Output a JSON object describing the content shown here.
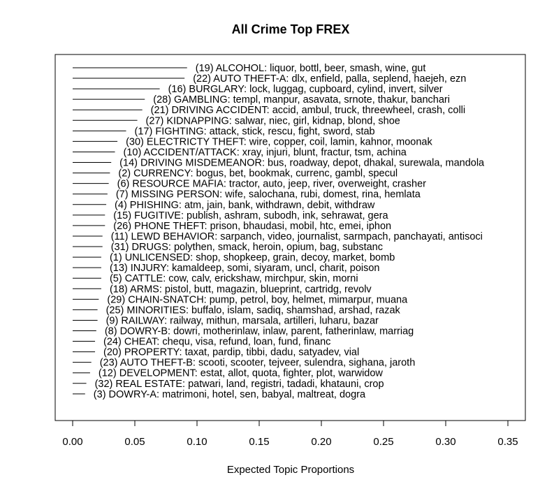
{
  "chart_data": {
    "type": "bar",
    "title": "All Crime Top FREX",
    "xlabel": "Expected Topic Proportions",
    "ylabel": "",
    "xlim": [
      0,
      0.35
    ],
    "x_ticks": [
      0.0,
      0.05,
      0.1,
      0.15,
      0.2,
      0.25,
      0.3,
      0.35
    ],
    "x_tick_labels": [
      "0.00",
      "0.05",
      "0.10",
      "0.15",
      "0.20",
      "0.25",
      "0.30",
      "0.35"
    ],
    "orientation": "horizontal",
    "grid": false,
    "bars": [
      {
        "label": "(19) ALCOHOL: liquor, bottl, beer, smash, wine, gut",
        "value": 0.092
      },
      {
        "label": "(22) AUTO THEFT-A: dlx, enfield, palla, seplend, haejeh, ezn",
        "value": 0.09
      },
      {
        "label": "(16) BURGLARY: lock, luggag, cupboard, cylind, invert, silver",
        "value": 0.07
      },
      {
        "label": "(28) GAMBLING: templ, manpur, asavata, srnote, thakur, banchari",
        "value": 0.058
      },
      {
        "label": "(21) DRIVING ACCIDENT: accid, ambul, truck, threewheel, crash, colli",
        "value": 0.056
      },
      {
        "label": "(27) KIDNAPPING: salwar, niec, girl, kidnap, blond, shoe",
        "value": 0.052
      },
      {
        "label": "(17) FIGHTING: attack, stick, rescu, fight, sword, stab",
        "value": 0.043
      },
      {
        "label": "(30) ELECTRICTY THEFT: wire, copper, coil, lamin, kahnor, moonak",
        "value": 0.036
      },
      {
        "label": "(10) ACCIDENT/ATTACK: xray, injuri, blunt, fractur, tsm, achina",
        "value": 0.034
      },
      {
        "label": "(14) DRIVING MISDEMEANOR: bus, roadway, depot, dhakal, surewala, mandola",
        "value": 0.031
      },
      {
        "label": "(2) CURRENCY: bogus, bet, bookmak, currenc, gambl, specul",
        "value": 0.03
      },
      {
        "label": "(6) RESOURCE MAFIA: tractor, auto, jeep, river, overweight, crasher",
        "value": 0.029
      },
      {
        "label": "(7) MISSING PERSON: wife, salochana, rubi, domest, rina, hemlata",
        "value": 0.028
      },
      {
        "label": "(4) PHISHING: atm, jain, bank, withdrawn, debit, withdraw",
        "value": 0.027
      },
      {
        "label": "(15) FUGITIVE: publish, ashram, subodh, ink, sehrawat, gera",
        "value": 0.026
      },
      {
        "label": "(26) PHONE THEFT: prison, bhaudasi, mobil, htc, emei, iphon",
        "value": 0.026
      },
      {
        "label": "(11) LEWD BEHAVIOR: sarpanch, video, journalist, sarmpach, panchayati, antisoci",
        "value": 0.024
      },
      {
        "label": "(31) DRUGS: polythen, smack, heroin, opium, bag, substanc",
        "value": 0.024
      },
      {
        "label": "(1) UNLICENSED: shop, shopkeep, grain, decoy, market, bomb",
        "value": 0.023
      },
      {
        "label": "(13) INJURY: kamaldeep, somi, siyaram, uncl, charit, poison",
        "value": 0.023
      },
      {
        "label": "(5) CATTLE: cow, calv, erickshaw, mirchpur, skin, morni",
        "value": 0.023
      },
      {
        "label": "(18) ARMS: pistol, butt, magazin, blueprint, cartridg, revolv",
        "value": 0.023
      },
      {
        "label": "(29) CHAIN-SNATCH: pump, petrol, boy, helmet, mimarpur, muana",
        "value": 0.021
      },
      {
        "label": "(25) MINORITIES: buffalo, islam, sadiq, shamshad, arshad, razak",
        "value": 0.02
      },
      {
        "label": "(9) RAILWAY: railway, mithun, marsala, artilleri, luharu, bazar",
        "value": 0.02
      },
      {
        "label": "(8) DOWRY-B: dowri, motherinlaw, inlaw, parent, fatherinlaw, marriag",
        "value": 0.019
      },
      {
        "label": "(24) CHEAT: chequ, visa, refund, loan, fund, financ",
        "value": 0.018
      },
      {
        "label": "(20) PROPERTY: taxat, pardip, tibbi, dadu, satyadev, vial",
        "value": 0.018
      },
      {
        "label": "(23) AUTO THEFT-B: scooti, scooter, tejveer, sulendra, sighana, jaroth",
        "value": 0.015
      },
      {
        "label": "(12) DEVELOPMENT: estat, allot, quota, fighter, plot, warwidow",
        "value": 0.014
      },
      {
        "label": "(32) REAL ESTATE: patwari, land, registri, tadadi, khatauni, crop",
        "value": 0.011
      },
      {
        "label": "(3) DOWRY-A: matrimoni, hotel, sen, babyal, maltreat, dogra",
        "value": 0.01
      }
    ]
  },
  "colors": {
    "line": "#000000",
    "background": "#ffffff"
  }
}
